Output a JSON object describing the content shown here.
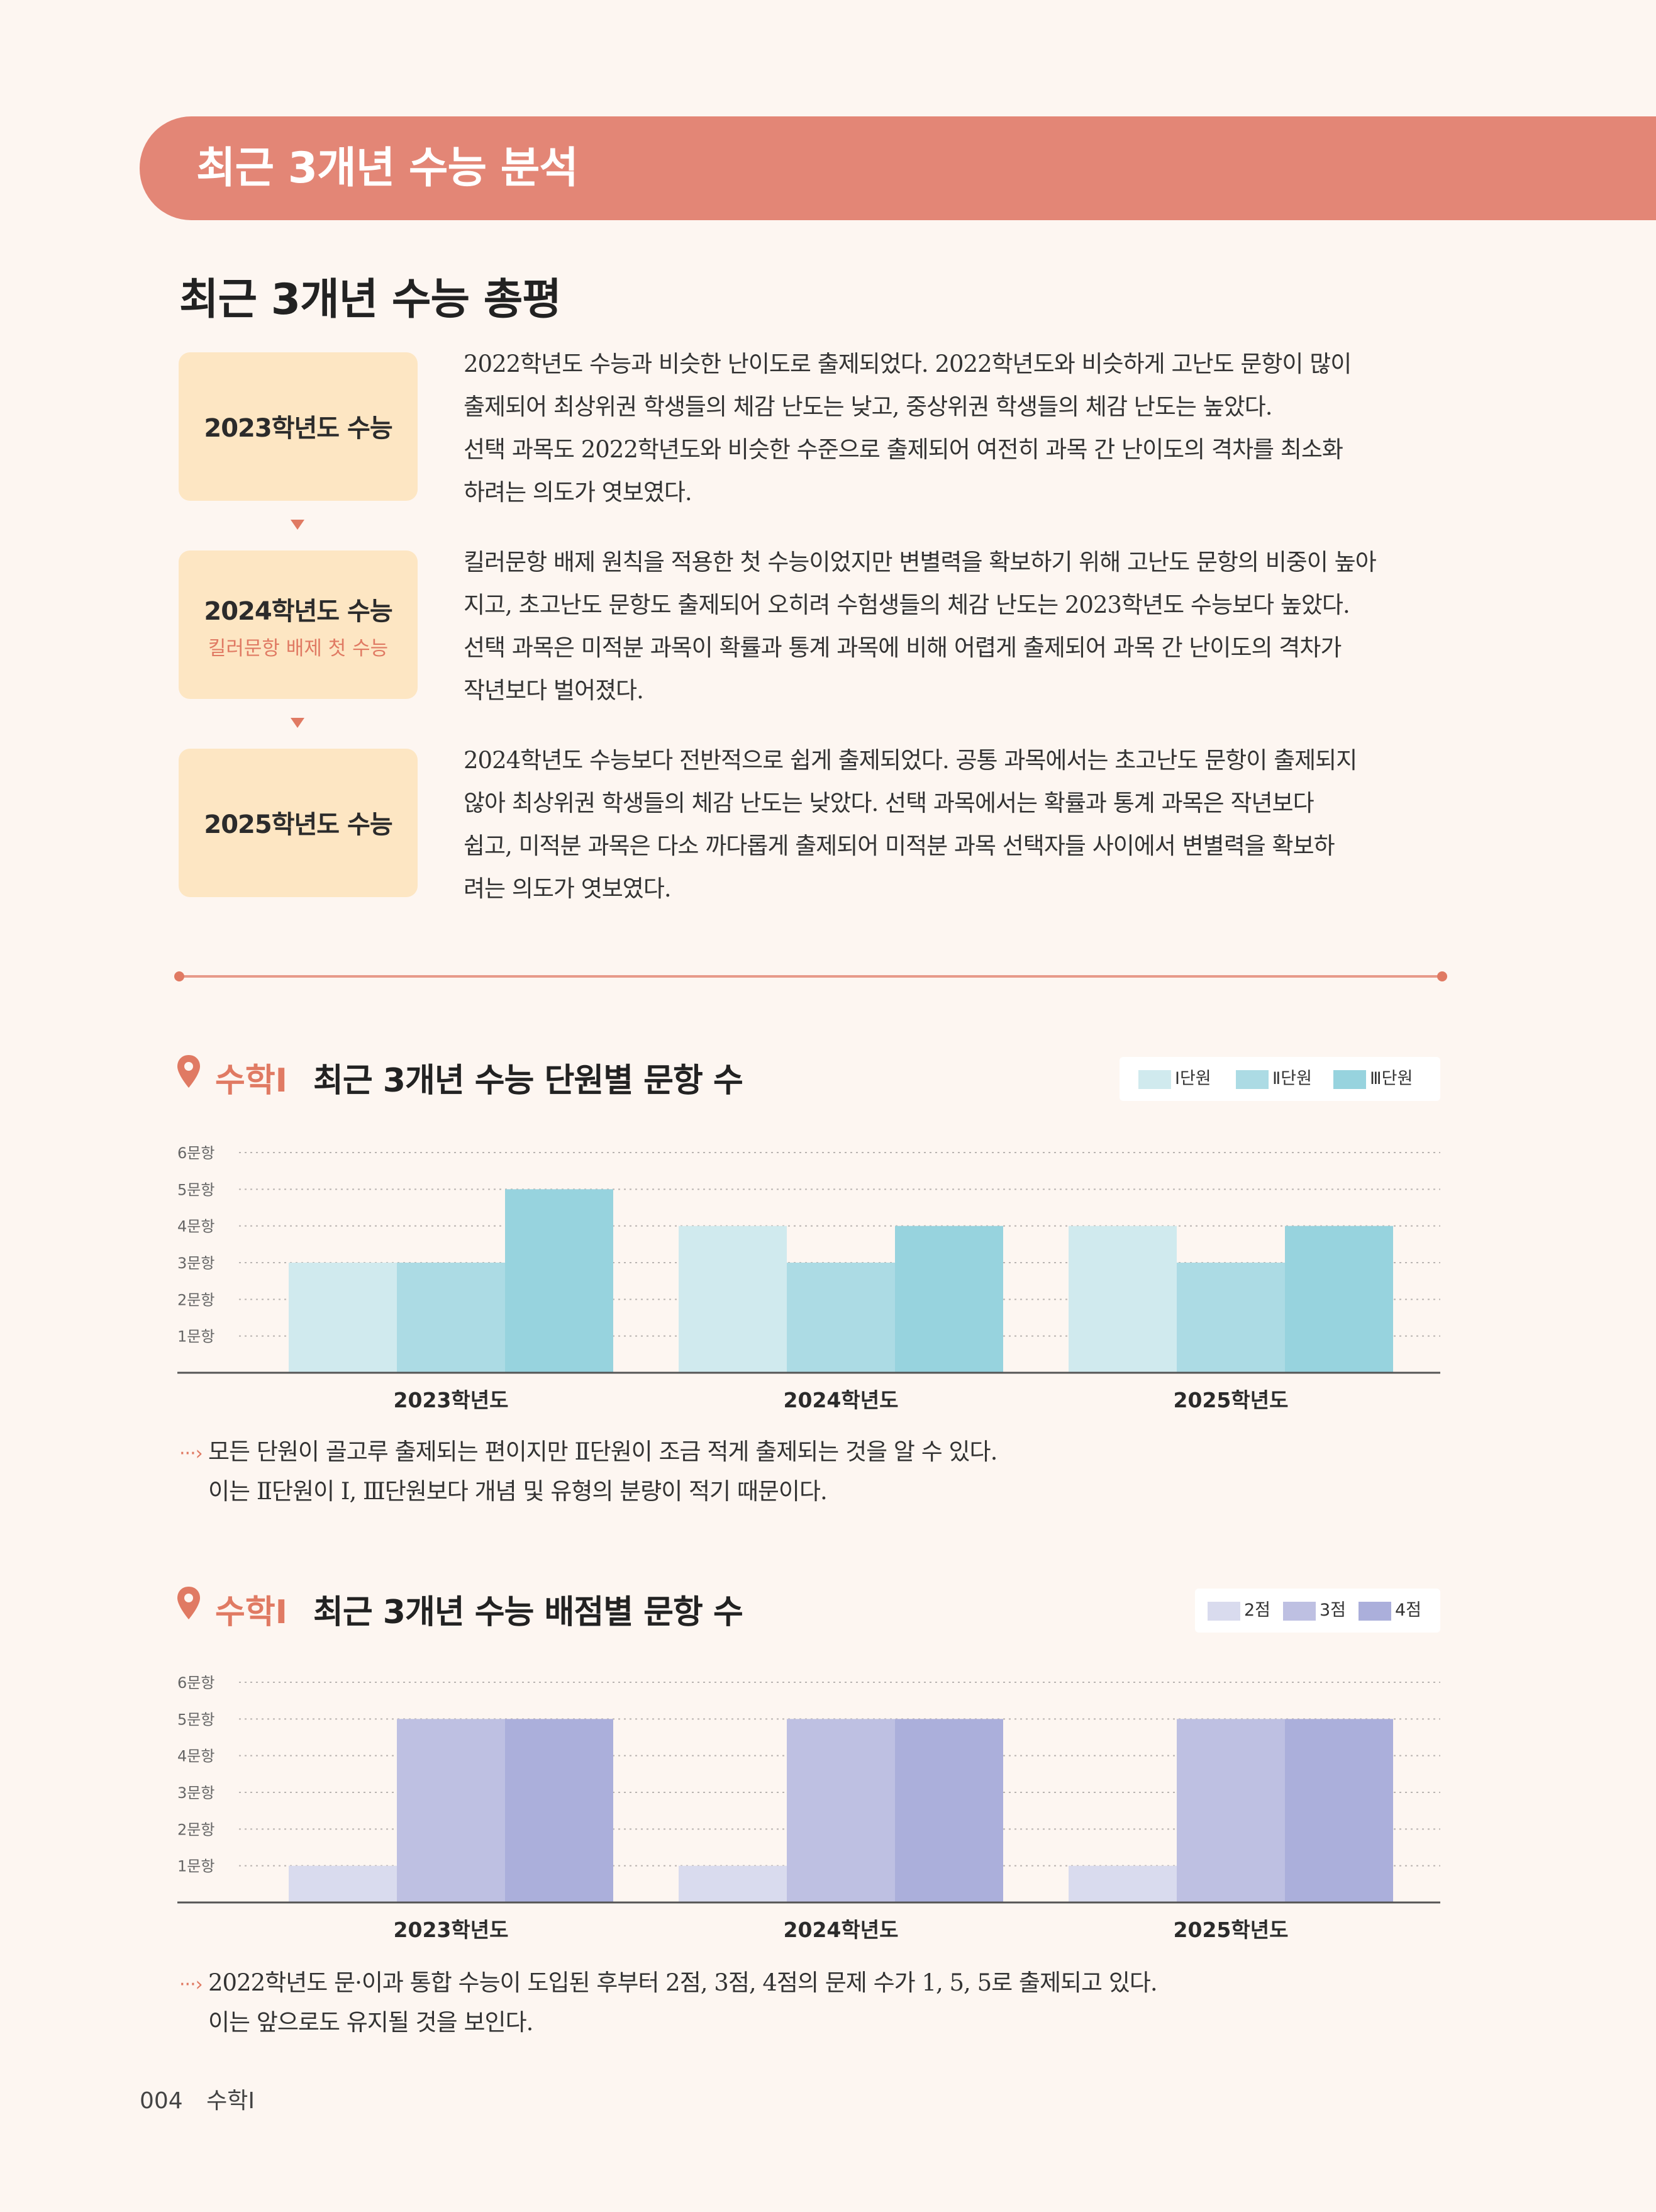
{
  "header": {
    "banner_title": "최근 3개년 수능 분석"
  },
  "overview": {
    "title": "최근 3개년 수능 총평",
    "entries": [
      {
        "label": "2023학년도 수능",
        "sublabel": "",
        "lines": [
          "2022학년도 수능과 비슷한 난이도로 출제되었다. 2022학년도와 비슷하게 고난도 문항이 많이",
          "출제되어 최상위권 학생들의 체감 난도는 낮고, 중상위권 학생들의 체감 난도는 높았다.",
          "선택 과목도 2022학년도와 비슷한 수준으로 출제되어 여전히 과목 간 난이도의 격차를 최소화",
          "하려는 의도가 엿보였다."
        ]
      },
      {
        "label": "2024학년도 수능",
        "sublabel": "킬러문항 배제 첫 수능",
        "lines": [
          "킬러문항 배제 원칙을 적용한 첫 수능이었지만 변별력을 확보하기 위해 고난도 문항의 비중이 높아",
          "지고, 초고난도 문항도 출제되어 오히려 수험생들의 체감 난도는 2023학년도 수능보다 높았다.",
          "선택 과목은 미적분 과목이 확률과 통계 과목에 비해 어렵게 출제되어 과목 간 난이도의 격차가",
          "작년보다 벌어졌다."
        ]
      },
      {
        "label": "2025학년도 수능",
        "sublabel": "",
        "lines": [
          "2024학년도 수능보다 전반적으로 쉽게 출제되었다. 공통 과목에서는 초고난도 문항이 출제되지",
          "않아 최상위권 학생들의 체감 난도는 낮았다. 선택 과목에서는 확률과 통계 과목은 작년보다",
          "쉽고, 미적분 과목은 다소 까다롭게 출제되어 미적분 과목 선택자들 사이에서 변별력을 확보하",
          "려는 의도가 엿보였다."
        ]
      }
    ]
  },
  "charts": [
    {
      "subject": "수학Ⅰ",
      "title": "최근 3개년 수능 단원별 문항 수",
      "note_lines": [
        "모든 단원이 골고루 출제되는 편이지만 Ⅱ단원이 조금 적게 출제되는 것을 알 수 있다.",
        "이는 Ⅱ단원이 Ⅰ, Ⅲ단원보다 개념 및 유형의 분량이 적기 때문이다."
      ]
    },
    {
      "subject": "수학Ⅰ",
      "title": "최근 3개년 수능 배점별 문항 수",
      "note_lines": [
        "2022학년도 문·이과 통합 수능이 도입된 후부터 2점, 3점, 4점의 문제 수가 1, 5, 5로 출제되고 있다.",
        "이는 앞으로도 유지될 것을 보인다."
      ]
    }
  ],
  "chart_data": [
    {
      "type": "bar",
      "title": "최근 3개년 수능 단원별 문항 수",
      "categories": [
        "2023학년도",
        "2024학년도",
        "2025학년도"
      ],
      "series": [
        {
          "name": "Ⅰ단원",
          "values": [
            3,
            4,
            4
          ],
          "color": "#d0eaee"
        },
        {
          "name": "Ⅱ단원",
          "values": [
            3,
            3,
            3
          ],
          "color": "#acdbe4"
        },
        {
          "name": "Ⅲ단원",
          "values": [
            5,
            4,
            4
          ],
          "color": "#97d3de"
        }
      ],
      "yticks": [
        "1문항",
        "2문항",
        "3문항",
        "4문항",
        "5문항",
        "6문항"
      ],
      "ylim": [
        0,
        6
      ],
      "grid": true,
      "legend": "top-right"
    },
    {
      "type": "bar",
      "title": "최근 3개년 수능 배점별 문항 수",
      "categories": [
        "2023학년도",
        "2024학년도",
        "2025학년도"
      ],
      "series": [
        {
          "name": "2점",
          "values": [
            1,
            1,
            1
          ],
          "color": "#d9dbee"
        },
        {
          "name": "3점",
          "values": [
            5,
            5,
            5
          ],
          "color": "#bec0e2"
        },
        {
          "name": "4점",
          "values": [
            5,
            5,
            5
          ],
          "color": "#abafdb"
        }
      ],
      "yticks": [
        "1문항",
        "2문항",
        "3문항",
        "4문항",
        "5문항",
        "6문항"
      ],
      "ylim": [
        0,
        6
      ],
      "grid": true,
      "legend": "top-right"
    }
  ],
  "colors": {
    "accent": "#e38676",
    "box": "#fde6c3",
    "background": "#fdf6f1"
  },
  "footer": {
    "page": "004",
    "subject": "수학Ⅰ"
  }
}
